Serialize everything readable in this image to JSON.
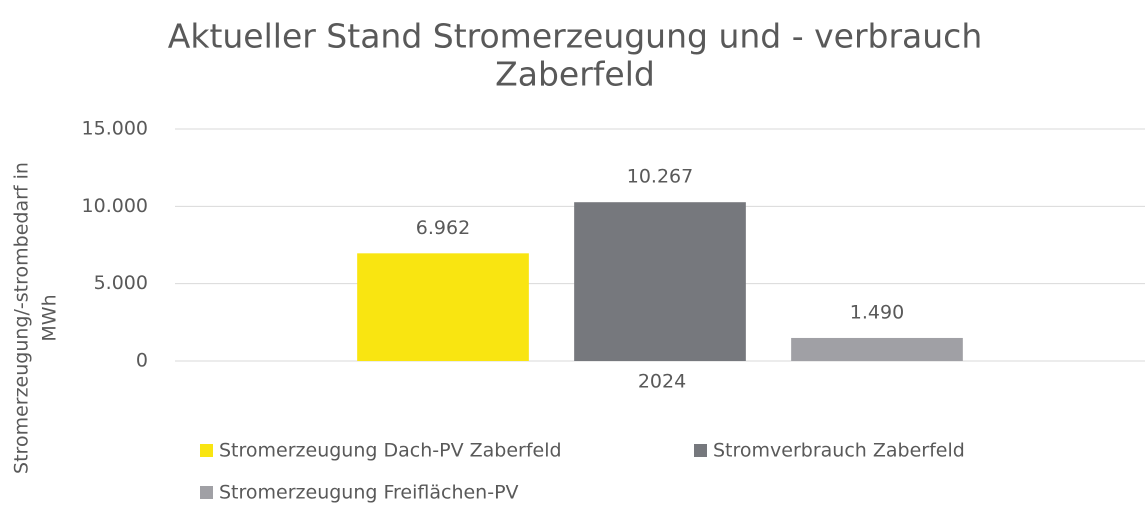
{
  "chart_data": {
    "type": "bar",
    "title": [
      "Aktueller Stand Stromerzeugung und - verbrauch",
      "Zaberfeld"
    ],
    "ylabel": [
      "Stromerzeugung/-strombedarf  in",
      "MWh"
    ],
    "categories": [
      "2024"
    ],
    "series": [
      {
        "name": "Stromerzeugung Dach-PV Zaberfeld",
        "color": "#f9e511",
        "values": [
          6962
        ],
        "value_labels": [
          "6.962"
        ]
      },
      {
        "name": "Stromverbrauch Zaberfeld",
        "color": "#76787d",
        "values": [
          10267
        ],
        "value_labels": [
          "10.267"
        ]
      },
      {
        "name": "Stromerzeugung Freiflächen-PV",
        "color": "#a0a0a5",
        "values": [
          1490
        ],
        "value_labels": [
          "1.490"
        ]
      }
    ],
    "ylim": [
      0,
      15000
    ],
    "yticks": [
      0,
      {
        "value": 5000,
        "label": "5.000"
      },
      {
        "value": 10000,
        "label": "10.000"
      },
      {
        "value": 15000,
        "label": "15.000"
      }
    ],
    "grid": true,
    "legend": "bottom"
  }
}
